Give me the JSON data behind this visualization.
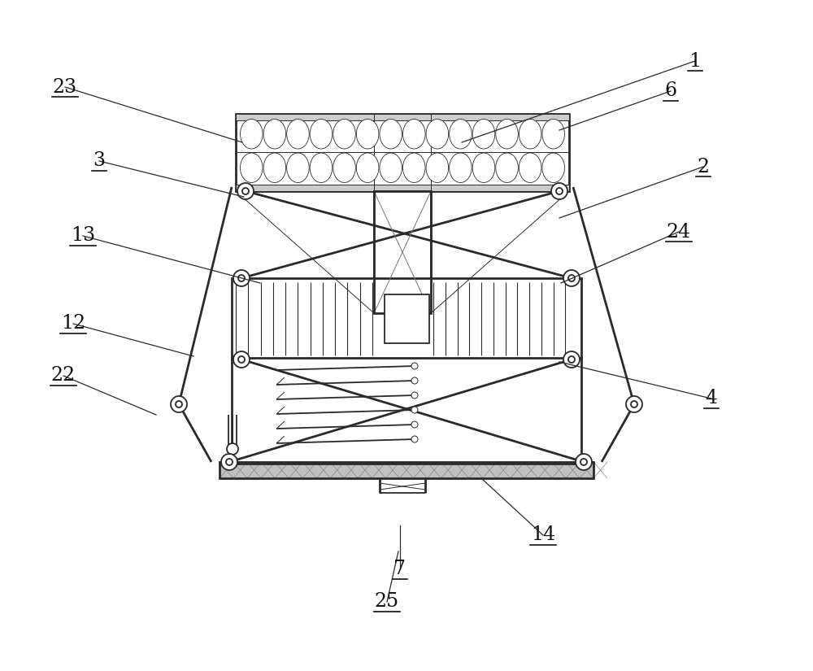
{
  "bg_color": "#ffffff",
  "lc": "#2a2a2a",
  "lw": 1.3,
  "lw2": 2.0,
  "lw_thin": 0.7,
  "labels_raw": [
    [
      "1",
      855,
      75,
      568,
      175
    ],
    [
      "6",
      825,
      112,
      688,
      160
    ],
    [
      "2",
      865,
      205,
      688,
      268
    ],
    [
      "24",
      835,
      285,
      690,
      348
    ],
    [
      "4",
      875,
      490,
      688,
      445
    ],
    [
      "14",
      668,
      658,
      592,
      588
    ],
    [
      "7",
      492,
      700,
      492,
      646
    ],
    [
      "25",
      476,
      740,
      490,
      678
    ],
    [
      "23",
      80,
      107,
      298,
      175
    ],
    [
      "3",
      122,
      198,
      300,
      242
    ],
    [
      "13",
      102,
      290,
      320,
      348
    ],
    [
      "12",
      90,
      398,
      238,
      438
    ],
    [
      "22",
      78,
      462,
      192,
      510
    ]
  ]
}
